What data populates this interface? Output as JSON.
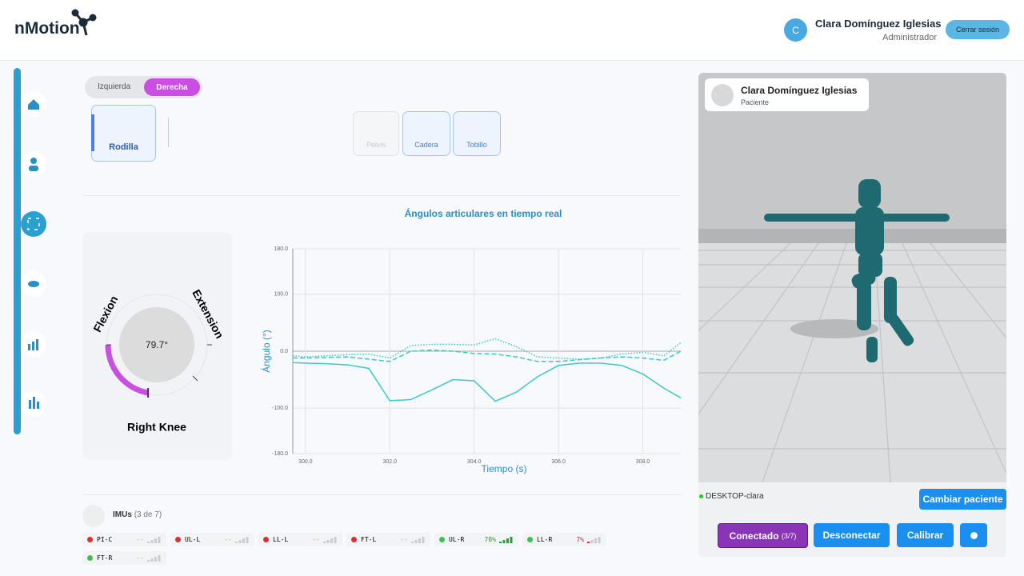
{
  "header": {
    "brand": "nMotion",
    "avatar": "C",
    "user_name": "Clara Domínguez Iglesias",
    "user_role": "Administrador",
    "logout": "Cerrar sesión"
  },
  "side_toggle": {
    "left": "Izquierda",
    "right": "Derecha"
  },
  "joints": {
    "main": "Rodilla",
    "sub": [
      "Pelvis",
      "Cadera",
      "Tobillo"
    ]
  },
  "gauge": {
    "flexion_label": "Flexion",
    "extension_label": "Extension",
    "value": 79.7,
    "value_label": "79.7°",
    "name": "Right Knee"
  },
  "chart_data": {
    "type": "line",
    "title": "Ángulos articulares en tiempo real",
    "x_label": "Tiempo (s)",
    "y_label": "Ángulo (°)",
    "x": [
      299.7,
      300,
      300.5,
      301,
      301.5,
      302,
      302.5,
      303,
      303.5,
      304,
      304.5,
      305,
      305.5,
      306,
      306.5,
      307,
      307.5,
      308,
      308.5,
      308.9
    ],
    "series": [
      {
        "color": "#3cc8c8",
        "dash": "solid",
        "values": [
          -20,
          -21,
          -22,
          -24,
          -30,
          -87,
          -85,
          -68,
          -50,
          -52,
          -88,
          -72,
          -45,
          -25,
          -21,
          -21,
          -25,
          -40,
          -65,
          -82
        ]
      },
      {
        "color": "#3cc8c8",
        "dash": "dashed",
        "values": [
          -12,
          -12,
          -11,
          -10,
          -14,
          -18,
          0,
          2,
          0,
          -4,
          -5,
          -10,
          -18,
          -18,
          -15,
          -12,
          -10,
          -12,
          -16,
          0
        ]
      },
      {
        "color": "#3cc8c8",
        "dash": "dotted",
        "values": [
          -8,
          -10,
          -8,
          -6,
          -5,
          -12,
          10,
          12,
          12,
          11,
          22,
          8,
          -10,
          -12,
          -14,
          -12,
          -5,
          -2,
          -8,
          15
        ]
      }
    ],
    "xlim": [
      299.7,
      308.9
    ],
    "ylim": [
      -180,
      180
    ],
    "xticks": [
      {
        "value": 300,
        "label": "300.0"
      },
      {
        "value": 302,
        "label": "302.0"
      },
      {
        "value": 304,
        "label": "304.0"
      },
      {
        "value": 306,
        "label": "306.0"
      },
      {
        "value": 308,
        "label": "308.0"
      }
    ],
    "yticks": [
      {
        "value": 180,
        "label": "180.0"
      },
      {
        "value": 100,
        "label": "100.0"
      },
      {
        "value": 0,
        "label": "0.0"
      },
      {
        "value": -100,
        "label": "-100.0"
      },
      {
        "value": -180,
        "label": "-180.0"
      }
    ],
    "grid": true
  },
  "imus": {
    "title": "IMUs",
    "count": "(3 de 7)",
    "items": [
      {
        "name": "PI-C",
        "status": "red",
        "level": "--"
      },
      {
        "name": "UL-L",
        "status": "red",
        "level": "--"
      },
      {
        "name": "LL-L",
        "status": "red",
        "level": "--"
      },
      {
        "name": "FT-L",
        "status": "red",
        "level": "--"
      },
      {
        "name": "UL-R",
        "status": "green",
        "level": "78%"
      },
      {
        "name": "LL-R",
        "status": "green",
        "level": "7%"
      },
      {
        "name": "FT-R",
        "status": "green",
        "level": "--"
      }
    ]
  },
  "viewer": {
    "patient_name": "Clara Domínguez Iglesias",
    "patient_role": "Paciente",
    "device": "DESKTOP-clara",
    "change_patient": "Cambiar paciente",
    "connected": "Conectado",
    "connected_count": "(3/7)",
    "disconnect": "Desconectar",
    "calibrate": "Calibrar"
  }
}
